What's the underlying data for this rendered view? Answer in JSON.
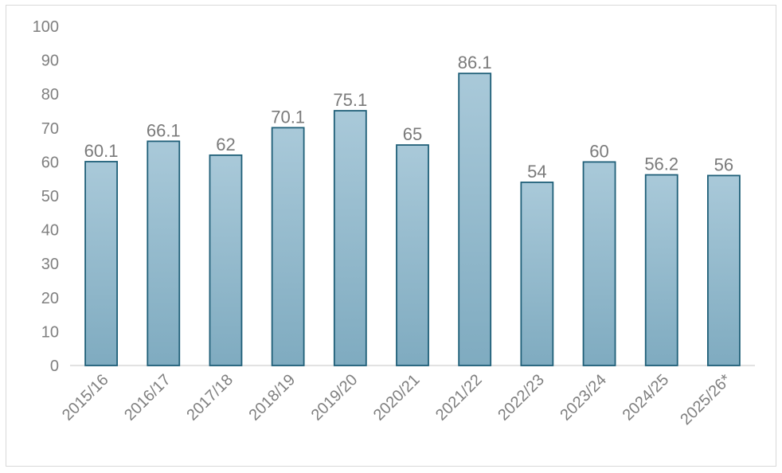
{
  "chart_data": {
    "type": "bar",
    "categories": [
      "2015/16",
      "2016/17",
      "2017/18",
      "2018/19",
      "2019/20",
      "2020/21",
      "2021/22",
      "2022/23",
      "2023/24",
      "2024/25",
      "2025/26*"
    ],
    "values": [
      60.1,
      66.1,
      62,
      70.1,
      75.1,
      65,
      86.1,
      54,
      60,
      56.2,
      56
    ],
    "data_labels": [
      "60.1",
      "66.1",
      "62",
      "70.1",
      "75.1",
      "65",
      "86.1",
      "54",
      "60",
      "56.2",
      "56"
    ],
    "yticks": [
      0,
      10,
      20,
      30,
      40,
      50,
      60,
      70,
      80,
      90,
      100
    ],
    "ylim": [
      0,
      100
    ],
    "title": "",
    "xlabel": "",
    "ylabel": "",
    "grid": false,
    "legend": "none",
    "colors": {
      "bar_top": "#a9c9d9",
      "bar_bottom": "#7fabc0",
      "bar_stroke": "#1f5f78",
      "axis": "#d9d9d9",
      "text": "#7f7f7f"
    }
  }
}
